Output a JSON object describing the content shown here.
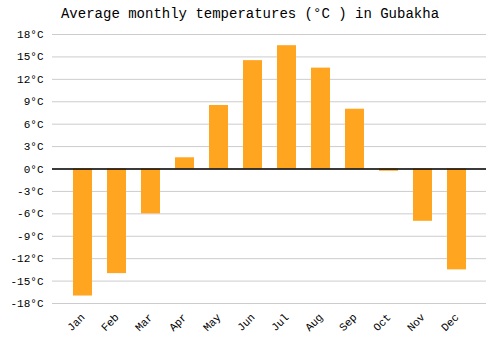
{
  "chart_data": {
    "type": "bar",
    "title": "Average monthly temperatures (°C ) in Gubakha",
    "categories": [
      "Jan",
      "Feb",
      "Mar",
      "Apr",
      "May",
      "Jun",
      "Jul",
      "Aug",
      "Sep",
      "Oct",
      "Nov",
      "Dec"
    ],
    "values": [
      -17,
      -14,
      -6,
      1.5,
      8.5,
      14.5,
      16.5,
      13.5,
      8,
      -0.3,
      -7,
      -13.5
    ],
    "color": "#FFA520",
    "ylim": [
      -18,
      18
    ],
    "yticks": [
      {
        "value": -18,
        "label": "-18°C"
      },
      {
        "value": -15,
        "label": "-15°C"
      },
      {
        "value": -12,
        "label": "-12°C"
      },
      {
        "value": -9,
        "label": "-9°C"
      },
      {
        "value": -6,
        "label": "-6°C"
      },
      {
        "value": -3,
        "label": "-3°C"
      },
      {
        "value": 0,
        "label": "0°C"
      },
      {
        "value": 3,
        "label": "3°C"
      },
      {
        "value": 6,
        "label": "6°C"
      },
      {
        "value": 9,
        "label": "9°C"
      },
      {
        "value": 12,
        "label": "12°C"
      },
      {
        "value": 15,
        "label": "15°C"
      },
      {
        "value": 18,
        "label": "18°C"
      }
    ],
    "grid": true
  }
}
